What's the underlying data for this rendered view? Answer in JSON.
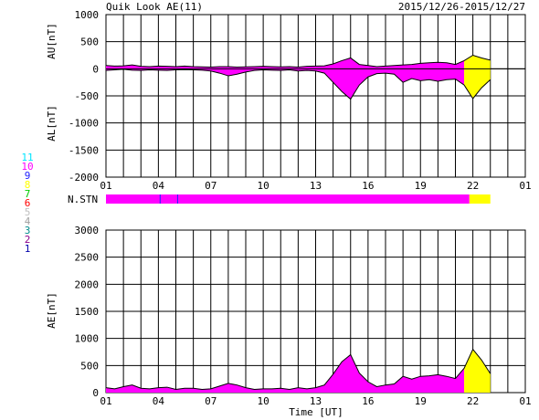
{
  "header": {
    "title": "Quik Look AE(11)",
    "date_range": "2015/12/26-2015/12/27"
  },
  "station_legend": [
    {
      "label": "11",
      "color": "#00e5ff"
    },
    {
      "label": "10",
      "color": "#ff00ff"
    },
    {
      "label": "9",
      "color": "#2020ff"
    },
    {
      "label": "8",
      "color": "#ffff00"
    },
    {
      "label": "7",
      "color": "#00cc00"
    },
    {
      "label": "6",
      "color": "#ff0000"
    },
    {
      "label": "5",
      "color": "#c0c0c0"
    },
    {
      "label": "4",
      "color": "#a0a0a0"
    },
    {
      "label": "3",
      "color": "#008b8b"
    },
    {
      "label": "2",
      "color": "#8b008b"
    },
    {
      "label": "1",
      "color": "#0000aa"
    }
  ],
  "colors": {
    "magenta": "#ff00ff",
    "yellow": "#ffff00",
    "station_blue": "#2020ff"
  },
  "nstn_label": "N.STN",
  "nstn_segments": [
    {
      "from_hour": 0.0,
      "to_hour": 20.8,
      "stations": 10
    },
    {
      "from_hour": 20.8,
      "to_hour": 22.0,
      "stations": 8
    }
  ],
  "nstn_ticks_hour": [
    3.1,
    4.1
  ],
  "chart_data": [
    {
      "type": "area",
      "name": "AU/AL",
      "ylabel_top": "AU[nT]",
      "ylabel_bottom": "AL[nT]",
      "ylim": [
        -2000,
        1000
      ],
      "yticks": [
        1000,
        500,
        0,
        -500,
        -1000,
        -1500,
        -2000
      ],
      "xlim_hours": [
        0,
        24
      ],
      "xticks": [
        "01",
        "04",
        "07",
        "10",
        "13",
        "16",
        "19",
        "22",
        "01"
      ],
      "grid": true,
      "series": [
        {
          "x": [
            0,
            0.5,
            1,
            1.5,
            2,
            2.5,
            3,
            3.5,
            4,
            4.5,
            5,
            5.5,
            6,
            6.5,
            7,
            7.5,
            8,
            8.5,
            9,
            9.5,
            10,
            10.5,
            11,
            11.5,
            12,
            12.5,
            13,
            13.5,
            14,
            14.5,
            15,
            15.5,
            16,
            16.5,
            17,
            17.5,
            18,
            18.5,
            19,
            19.5,
            20,
            20.5,
            21,
            21.5,
            22
          ],
          "values": [
            60,
            50,
            55,
            70,
            45,
            40,
            50,
            45,
            40,
            50,
            40,
            35,
            30,
            40,
            40,
            30,
            35,
            40,
            45,
            40,
            35,
            40,
            30,
            45,
            50,
            55,
            90,
            150,
            200,
            80,
            60,
            40,
            50,
            60,
            70,
            80,
            100,
            110,
            120,
            110,
            80,
            150,
            250,
            200,
            160
          ]
        },
        {
          "x": [
            0,
            0.5,
            1,
            1.5,
            2,
            2.5,
            3,
            3.5,
            4,
            4.5,
            5,
            5.5,
            6,
            6.5,
            7,
            7.5,
            8,
            8.5,
            9,
            9.5,
            10,
            10.5,
            11,
            11.5,
            12,
            12.5,
            13,
            13.5,
            14,
            14.5,
            15,
            15.5,
            16,
            16.5,
            17,
            17.5,
            18,
            18.5,
            19,
            19.5,
            20,
            20.5,
            21,
            21.5,
            22
          ],
          "values": [
            -30,
            -20,
            -10,
            -25,
            -30,
            -20,
            -25,
            -30,
            -20,
            -15,
            -20,
            -25,
            -40,
            -80,
            -130,
            -100,
            -60,
            -30,
            -20,
            -25,
            -30,
            -20,
            -40,
            -30,
            -40,
            -80,
            -250,
            -420,
            -560,
            -300,
            -150,
            -90,
            -80,
            -100,
            -250,
            -180,
            -220,
            -200,
            -230,
            -200,
            -190,
            -300,
            -550,
            -350,
            -200
          ]
        }
      ]
    },
    {
      "type": "area",
      "name": "AE",
      "ylabel": "AE[nT]",
      "xlabel": "Time [UT]",
      "ylim": [
        0,
        3000
      ],
      "yticks": [
        3000,
        2500,
        2000,
        1500,
        1000,
        500,
        0
      ],
      "xlim_hours": [
        0,
        24
      ],
      "xticks": [
        "01",
        "04",
        "07",
        "10",
        "13",
        "16",
        "19",
        "22",
        "01"
      ],
      "grid": true,
      "series": [
        {
          "x": [
            0,
            0.5,
            1,
            1.5,
            2,
            2.5,
            3,
            3.5,
            4,
            4.5,
            5,
            5.5,
            6,
            6.5,
            7,
            7.5,
            8,
            8.5,
            9,
            9.5,
            10,
            10.5,
            11,
            11.5,
            12,
            12.5,
            13,
            13.5,
            14,
            14.5,
            15,
            15.5,
            16,
            16.5,
            17,
            17.5,
            18,
            18.5,
            19,
            19.5,
            20,
            20.5,
            21,
            21.5,
            22
          ],
          "values": [
            90,
            70,
            110,
            140,
            80,
            70,
            90,
            100,
            60,
            80,
            80,
            60,
            70,
            120,
            170,
            140,
            90,
            60,
            70,
            70,
            80,
            60,
            90,
            70,
            90,
            140,
            340,
            570,
            700,
            360,
            200,
            110,
            140,
            160,
            300,
            250,
            300,
            310,
            330,
            300,
            260,
            450,
            800,
            600,
            350
          ]
        }
      ]
    }
  ]
}
